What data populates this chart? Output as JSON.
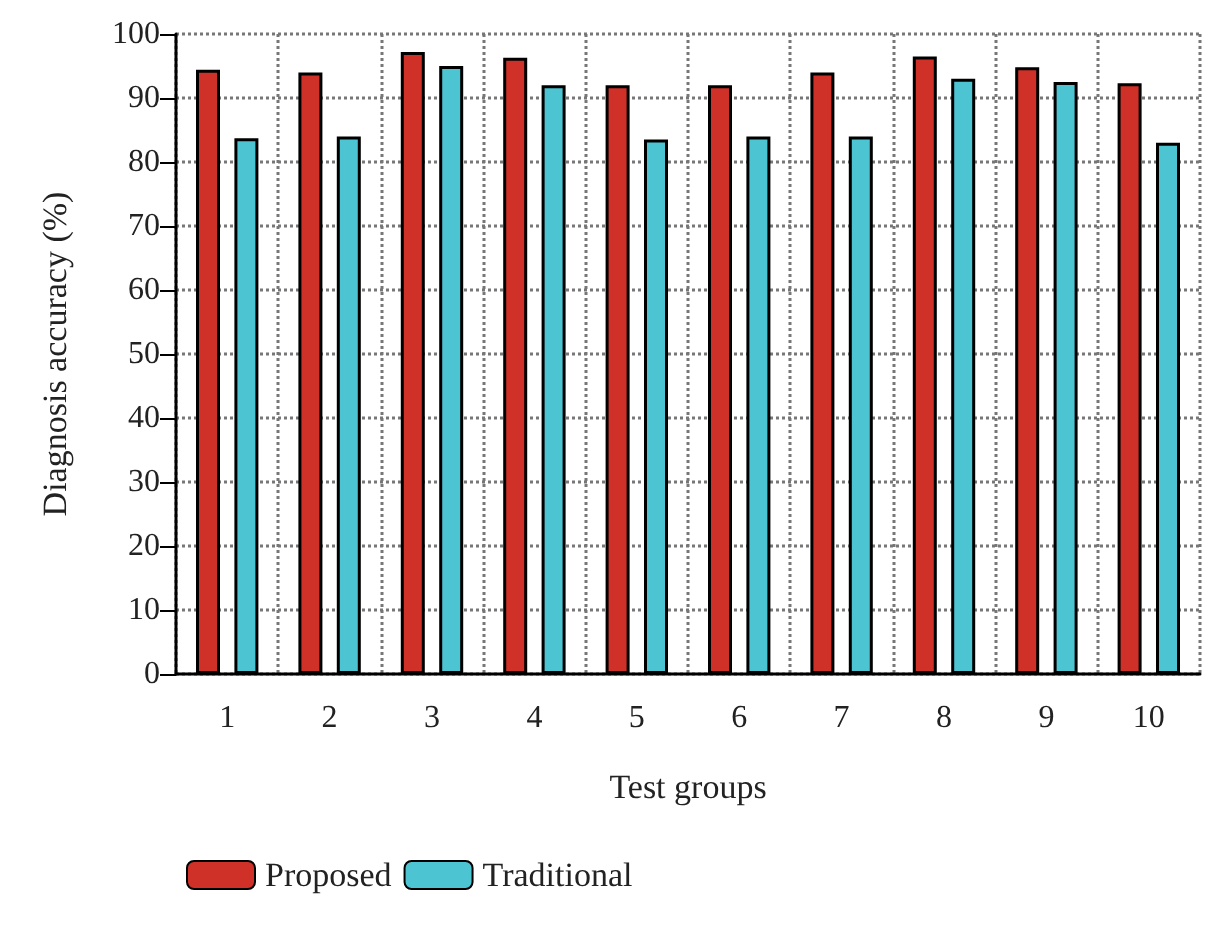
{
  "chart_data": {
    "type": "bar",
    "xlabel": "Test groups",
    "ylabel": "Diagnosis accuracy (%)",
    "categories": [
      "1",
      "2",
      "3",
      "4",
      "5",
      "6",
      "7",
      "8",
      "9",
      "10"
    ],
    "series": [
      {
        "name": "Proposed",
        "color": "#cf3027",
        "values": [
          94.4,
          94,
          97.2,
          96.3,
          92,
          92,
          94,
          96.5,
          94.8,
          92.3
        ]
      },
      {
        "name": "Traditional",
        "color": "#4dc4d2",
        "values": [
          83.7,
          84,
          95,
          92,
          83.5,
          84,
          84,
          93,
          92.5,
          83
        ]
      }
    ],
    "ylim": [
      0,
      100
    ],
    "yticks": [
      0,
      10,
      20,
      30,
      40,
      50,
      60,
      70,
      80,
      90,
      100
    ],
    "grid": true,
    "legend": "bottom left"
  }
}
